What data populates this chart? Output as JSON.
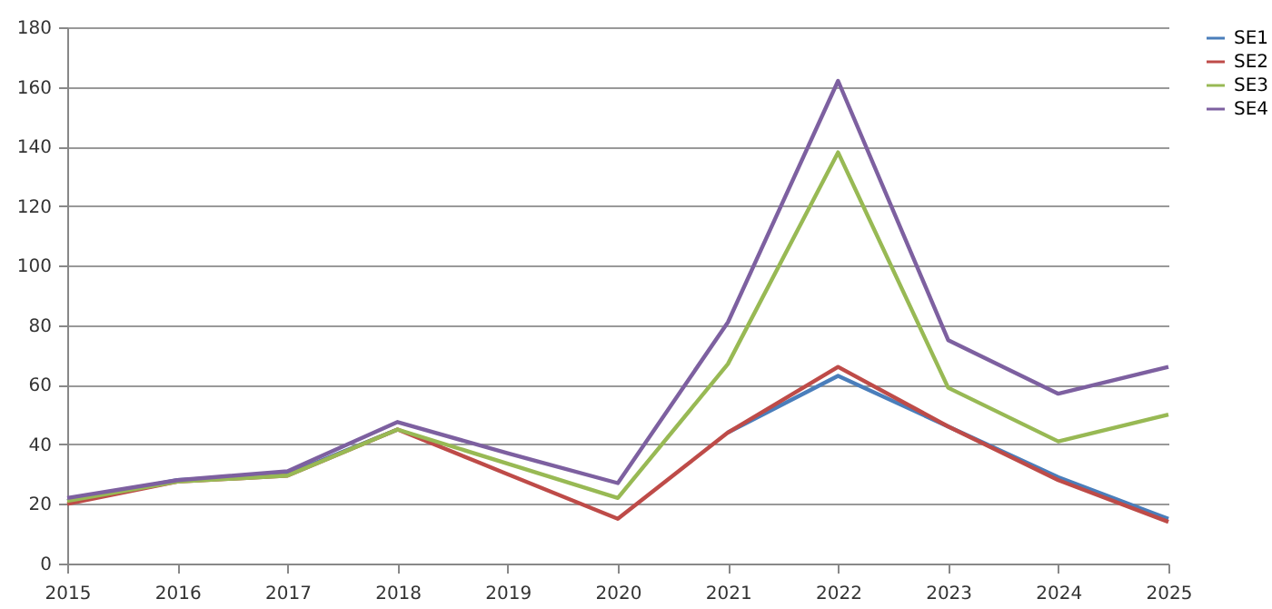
{
  "chart_data": {
    "type": "line",
    "categories": [
      "2015",
      "2016",
      "2017",
      "2018",
      "2019",
      "2020",
      "2021",
      "2022",
      "2023",
      "2024",
      "2025"
    ],
    "series": [
      {
        "name": "SE1",
        "color": "#4a7ebb",
        "values": [
          21,
          28,
          30,
          45,
          null,
          null,
          44,
          63,
          46,
          29,
          15
        ]
      },
      {
        "name": "SE2",
        "color": "#be4b48",
        "values": [
          20,
          27.5,
          29.5,
          45,
          30,
          15,
          44,
          66,
          46,
          28,
          14
        ]
      },
      {
        "name": "SE3",
        "color": "#98b954",
        "values": [
          21,
          27.5,
          29.5,
          45,
          33.5,
          22,
          67,
          138,
          59,
          41,
          50
        ]
      },
      {
        "name": "SE4",
        "color": "#7d60a0",
        "values": [
          22,
          28,
          31,
          47.5,
          37,
          27,
          81,
          162,
          75,
          57,
          66
        ]
      }
    ],
    "ylim": [
      0,
      180
    ],
    "yticks": [
      0,
      20,
      40,
      60,
      80,
      100,
      120,
      140,
      160,
      180
    ],
    "grid": "y",
    "legend": "right",
    "marker": "none",
    "line_style": "solid"
  }
}
